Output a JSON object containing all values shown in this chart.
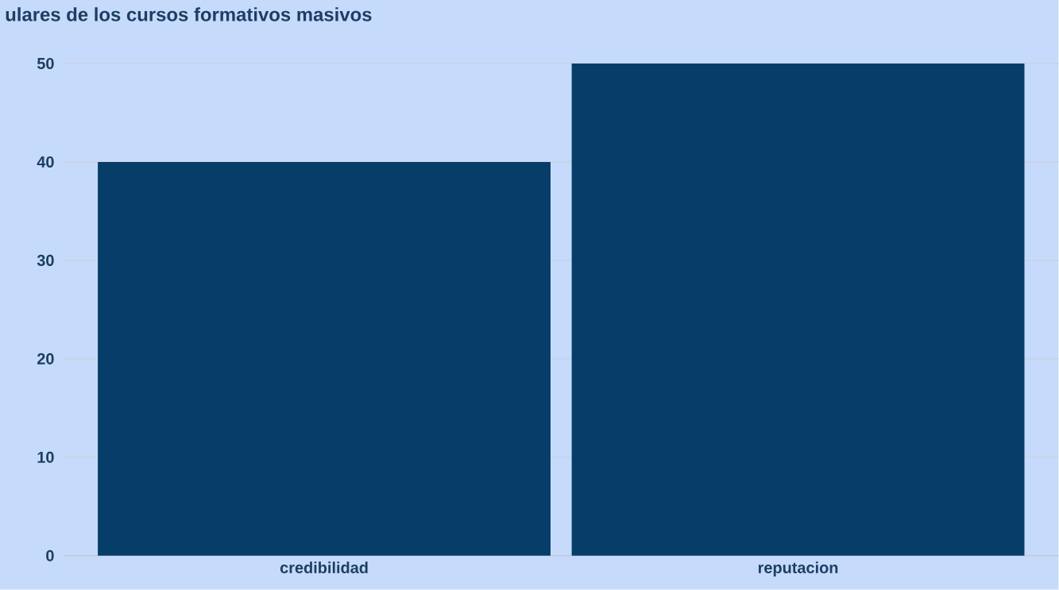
{
  "chart_data": {
    "type": "bar",
    "title": "ulares de los cursos formativos masivos",
    "categories": [
      "credibilidad",
      "reputacion"
    ],
    "values": [
      40,
      50
    ],
    "color": "#063d69",
    "ylim": [
      0,
      50
    ],
    "yticks": [
      0,
      10,
      20,
      30,
      40,
      50
    ],
    "grid": "y"
  }
}
